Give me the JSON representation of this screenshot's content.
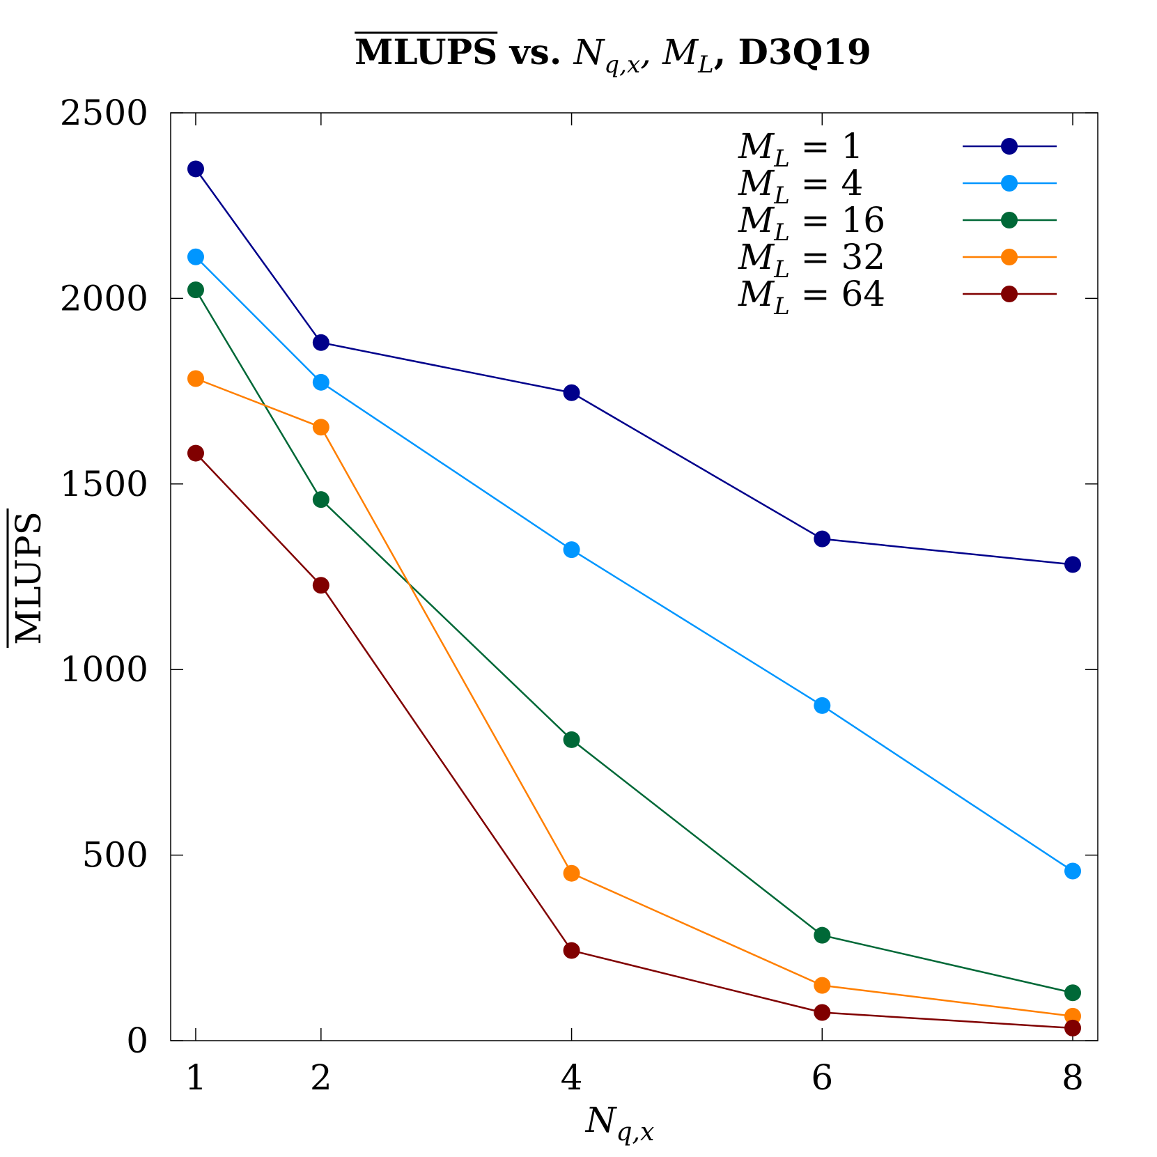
{
  "chart_data": {
    "type": "line",
    "title": {
      "overlined": "MLUPS",
      "middle": " vs. ",
      "var1": "N",
      "var1_sub": "q,x",
      "sep": ", ",
      "var2": "M",
      "var2_sub": "L",
      "suffix": ", D3Q19"
    },
    "xlabel": {
      "main": "N",
      "sub": "q,x"
    },
    "ylabel": {
      "overlined": "MLUPS"
    },
    "x": [
      1,
      2,
      4,
      6,
      8
    ],
    "xticks": [
      "1",
      "2",
      "4",
      "6",
      "8"
    ],
    "yticks": [
      "0",
      "500",
      "1000",
      "1500",
      "2000",
      "2500"
    ],
    "xlim": [
      0.8,
      8.2
    ],
    "ylim": [
      0,
      2500
    ],
    "grid": false,
    "legend_position": "top-right",
    "series": [
      {
        "name": "M_L = 1",
        "color": "#00008b",
        "values": [
          2349,
          1881,
          1746,
          1352,
          1283
        ]
      },
      {
        "name": "M_L = 4",
        "color": "#0096ff",
        "values": [
          2112,
          1774,
          1323,
          903,
          457
        ]
      },
      {
        "name": "M_L = 16",
        "color": "#006837",
        "values": [
          2023,
          1458,
          811,
          284,
          129
        ]
      },
      {
        "name": "M_L = 32",
        "color": "#ff7f00",
        "values": [
          1784,
          1653,
          451,
          149,
          66
        ]
      },
      {
        "name": "M_L = 64",
        "color": "#800000",
        "values": [
          1583,
          1227,
          243,
          76,
          34
        ]
      }
    ]
  }
}
